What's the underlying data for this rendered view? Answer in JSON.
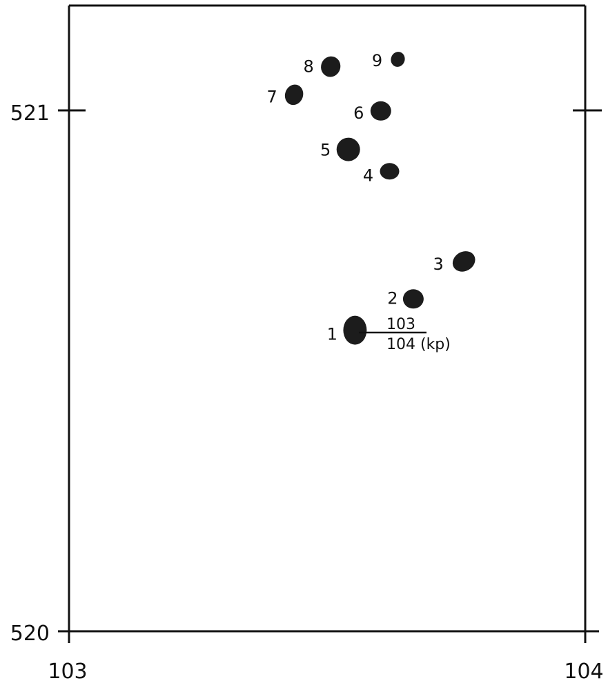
{
  "axis_labels": {
    "left_top": "521",
    "left_bottom": "520",
    "bottom_left": "103",
    "bottom_right": "104"
  },
  "scale_note": {
    "numerator": "103",
    "denominator": "104 (kp)"
  },
  "points": [
    {
      "label": "1",
      "x": 103.554,
      "y": 520.578
    },
    {
      "label": "2",
      "x": 103.667,
      "y": 520.638
    },
    {
      "label": "3",
      "x": 103.765,
      "y": 520.71
    },
    {
      "label": "4",
      "x": 103.621,
      "y": 520.883
    },
    {
      "label": "5",
      "x": 103.541,
      "y": 520.925
    },
    {
      "label": "6",
      "x": 103.604,
      "y": 520.999
    },
    {
      "label": "7",
      "x": 103.436,
      "y": 521.03
    },
    {
      "label": "8",
      "x": 103.507,
      "y": 521.084
    },
    {
      "label": "9",
      "x": 103.637,
      "y": 521.098
    }
  ],
  "colors": {
    "ink": "#111111",
    "spot": "#1c1c1c",
    "background": "#ffffff"
  }
}
